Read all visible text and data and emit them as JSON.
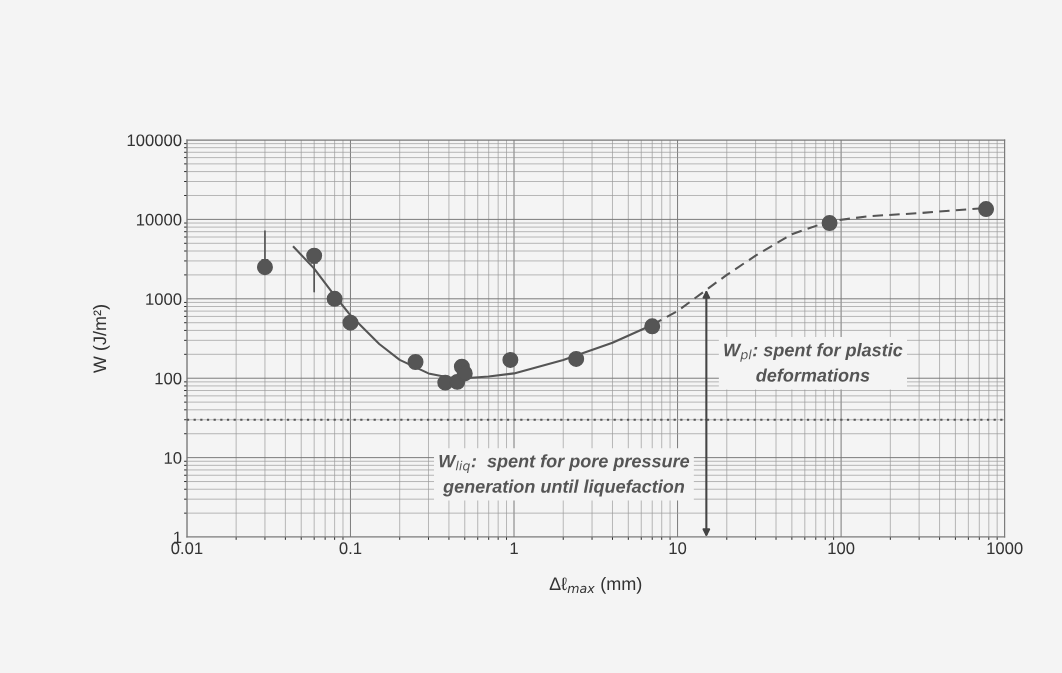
{
  "chart_data": {
    "type": "scatter",
    "xlabel": "Δℓ$_{max}$ (mm)",
    "ylabel": "W (J/m²)",
    "log": "xy",
    "grid": true,
    "legend": false,
    "xlim": [
      0.01,
      1000
    ],
    "xticks": [
      0.01,
      0.1,
      1,
      10,
      100,
      1000
    ],
    "ylim": [
      1,
      100000
    ],
    "yticks": [
      1,
      10,
      100,
      1000,
      10000,
      100000
    ],
    "series": [
      {
        "color": "#555555",
        "marker": "circle",
        "x": [
          0.03,
          0.06,
          0.08,
          0.1,
          0.25,
          0.38,
          0.45,
          0.48,
          0.5,
          0.95,
          2.4,
          7,
          85,
          770
        ],
        "values": [
          2500,
          3500,
          1000,
          500,
          160,
          88,
          90,
          140,
          115,
          170,
          175,
          450,
          9000,
          13500
        ]
      },
      {
        "type": "line",
        "color": "#555555",
        "marker": "none",
        "line_style": "solid",
        "x": [
          0.045,
          0.06,
          0.08,
          0.1,
          0.15,
          0.2,
          0.3,
          0.4,
          0.5,
          0.7,
          1,
          2,
          4,
          7
        ],
        "values": [
          4500,
          2400,
          1100,
          620,
          270,
          170,
          115,
          102,
          100,
          105,
          115,
          170,
          280,
          470
        ]
      },
      {
        "type": "line",
        "color": "#555555",
        "marker": "none",
        "line_style": "dashed",
        "x": [
          7,
          10,
          15,
          20,
          30,
          50,
          85,
          150,
          300,
          800
        ],
        "values": [
          470,
          700,
          1300,
          2000,
          3500,
          6500,
          9500,
          11000,
          12000,
          14000
        ]
      }
    ],
    "ref_lines": [
      {
        "axis": "y",
        "value": 30,
        "color": "#555555",
        "line_style": "dotted"
      }
    ],
    "annotations": [
      {
        "text": "W$_{liq}$:  spent for pore pressure\ngeneration until liquefaction",
        "x": 15,
        "y": 30
      },
      {
        "text": "W$_{pl}$: spent for plastic\ndeformations",
        "x": 15,
        "y": 30
      }
    ]
  }
}
